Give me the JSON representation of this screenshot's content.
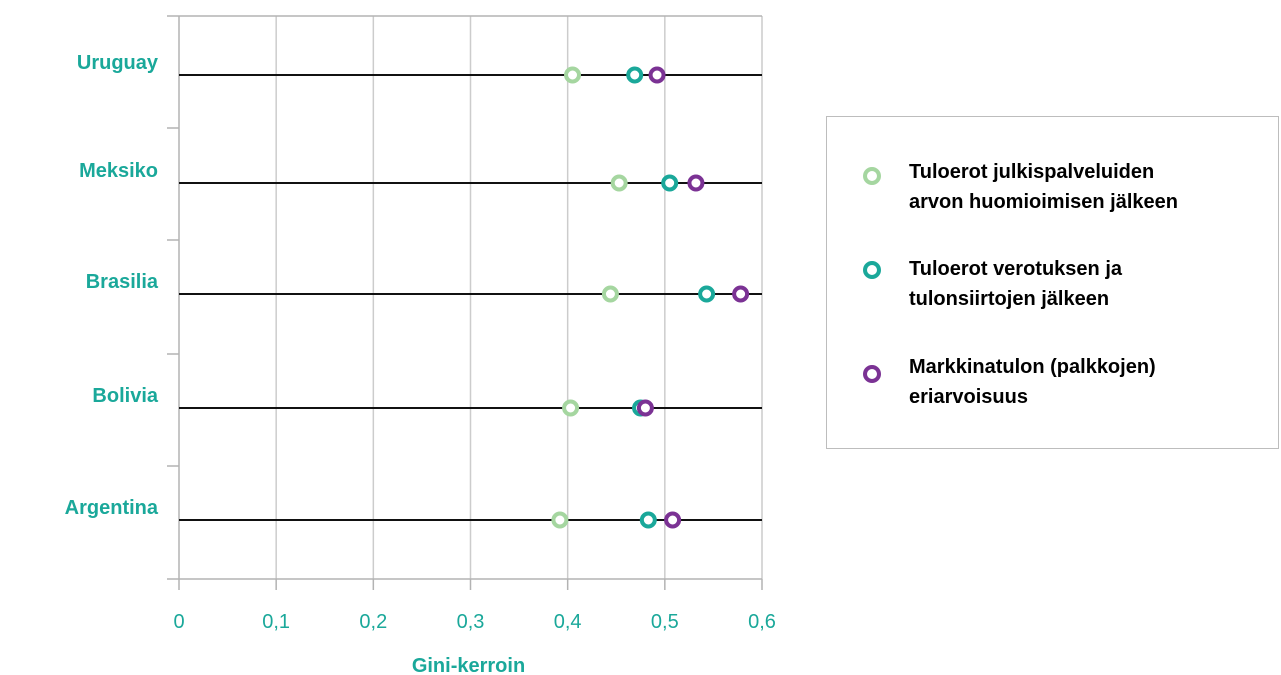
{
  "chart_data": {
    "type": "scatter",
    "xlabel": "Gini-kerroin",
    "xlim": [
      0,
      0.6
    ],
    "xticks": [
      "0",
      "0,1",
      "0,2",
      "0,3",
      "0,4",
      "0,5",
      "0,6"
    ],
    "tick_values": [
      0,
      0.1,
      0.2,
      0.3,
      0.4,
      0.5,
      0.6
    ],
    "categories": [
      "Uruguay",
      "Meksiko",
      "Brasilia",
      "Bolivia",
      "Argentina"
    ],
    "grid": "vertical",
    "legend_position": "right",
    "series": [
      {
        "name": "Tuloerot julkispalveluiden arvon huomioimisen jälkeen",
        "color": "#a5d6a0",
        "values": [
          0.405,
          0.453,
          0.444,
          0.403,
          0.392
        ]
      },
      {
        "name": "Tuloerot verotuksen ja tulonsiirtojen jälkeen",
        "color": "#1aa89a",
        "values": [
          0.469,
          0.505,
          0.543,
          0.475,
          0.483
        ]
      },
      {
        "name": "Markkinatulon (palkkojen) eriarvoisuus",
        "color": "#7b3294",
        "values": [
          0.492,
          0.532,
          0.578,
          0.48,
          0.508
        ]
      }
    ]
  },
  "legend": {
    "items": [
      {
        "line1": "Tuloerot julkispalveluiden",
        "line2": "arvon huomioimisen jälkeen",
        "color": "#a5d6a0"
      },
      {
        "line1": "Tuloerot verotuksen ja",
        "line2": "tulonsiirtojen jälkeen",
        "color": "#1aa89a"
      },
      {
        "line1": "Markkinatulon (palkkojen)",
        "line2": "eriarvoisuus",
        "color": "#7b3294"
      }
    ]
  },
  "colors": {
    "label": "#1aa89a",
    "grid": "#cccccc",
    "axis": "#b3b3b3",
    "category_line": "#111111"
  }
}
